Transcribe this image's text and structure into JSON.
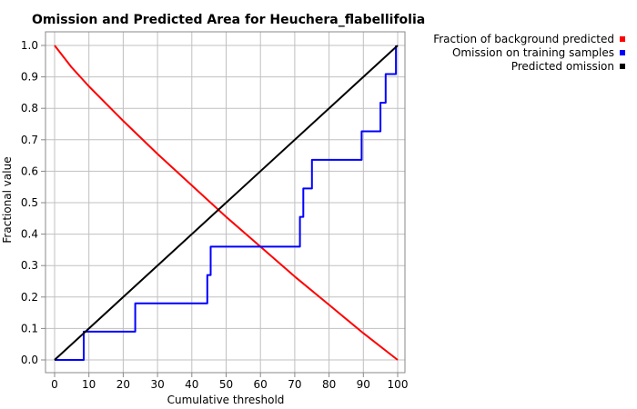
{
  "chart_data": {
    "type": "line",
    "title": "Omission and Predicted Area for Heuchera_flabellifolia",
    "xlabel": "Cumulative threshold",
    "ylabel": "Fractional value",
    "xlim": [
      0,
      100
    ],
    "ylim": [
      0,
      1.0
    ],
    "xticks": [
      "0",
      "10",
      "20",
      "30",
      "40",
      "50",
      "60",
      "70",
      "80",
      "90",
      "100"
    ],
    "yticks": [
      "0.0",
      "0.1",
      "0.2",
      "0.3",
      "0.4",
      "0.5",
      "0.6",
      "0.7",
      "0.8",
      "0.9",
      "1.0"
    ],
    "grid": true,
    "legend_position": "top-right, outside plot",
    "series": [
      {
        "name": "Fraction of background predicted",
        "color": "#ff0000",
        "x": [
          0,
          5,
          10,
          20,
          30,
          40,
          50,
          60,
          70,
          80,
          90,
          100
        ],
        "y": [
          1.0,
          0.93,
          0.87,
          0.76,
          0.655,
          0.555,
          0.455,
          0.36,
          0.265,
          0.175,
          0.085,
          0.0
        ]
      },
      {
        "name": "Omission on training samples",
        "color": "#0000ff",
        "step": true,
        "x": [
          0,
          8.5,
          8.5,
          23.5,
          23.5,
          44.5,
          44.5,
          45.5,
          45.5,
          71.5,
          71.5,
          72.5,
          72.5,
          75,
          75,
          89.5,
          89.5,
          95,
          95,
          96.5,
          96.5,
          99.5,
          99.5
        ],
        "y": [
          0,
          0,
          0.09,
          0.09,
          0.18,
          0.18,
          0.27,
          0.27,
          0.36,
          0.36,
          0.455,
          0.455,
          0.545,
          0.545,
          0.636,
          0.636,
          0.727,
          0.727,
          0.818,
          0.818,
          0.909,
          0.909,
          1.0
        ]
      },
      {
        "name": "Predicted omission",
        "color": "#000000",
        "x": [
          0,
          100
        ],
        "y": [
          0,
          1.0
        ]
      }
    ]
  }
}
